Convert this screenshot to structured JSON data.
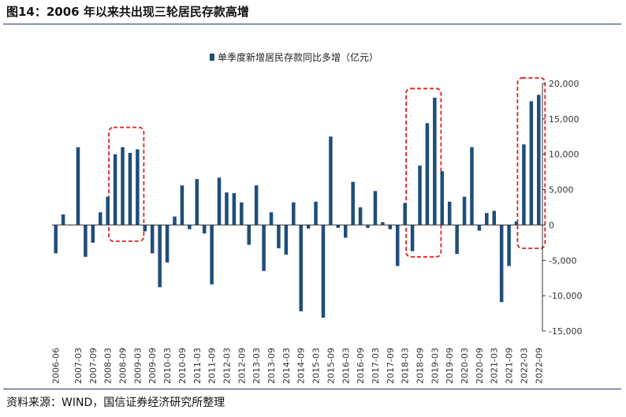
{
  "figure": {
    "title": "图14：2006 年以来共出现三轮居民存款高增",
    "source": "资料来源：WIND，国信证券经济研究所整理"
  },
  "chart_data": {
    "type": "bar",
    "legend": {
      "label": "单季度新增居民存款同比多增（亿元）",
      "placement": "top-center"
    },
    "color": "#1f4e79",
    "highlight_color": "#e02020",
    "ylim": [
      -15000,
      20000
    ],
    "yticks": [
      -15000,
      -10000,
      -5000,
      0,
      5000,
      10000,
      15000,
      20000
    ],
    "ytick_labels": [
      "-15,000",
      "-10,000",
      "-5,000",
      "0",
      "5,000",
      "10,000",
      "15,000",
      "20,000"
    ],
    "xtick_labels": [
      "2006-06",
      "2007-03",
      "2007-09",
      "2008-03",
      "2008-09",
      "2009-03",
      "2009-09",
      "2010-03",
      "2010-09",
      "2011-03",
      "2011-09",
      "2012-03",
      "2012-09",
      "2013-03",
      "2013-09",
      "2014-03",
      "2014-09",
      "2015-03",
      "2015-09",
      "2016-03",
      "2016-09",
      "2017-03",
      "2017-09",
      "2018-03",
      "2018-09",
      "2019-03",
      "2019-09",
      "2020-03",
      "2020-09",
      "2021-03",
      "2021-09",
      "2022-03",
      "2022-09"
    ],
    "categories": [
      "2006-06",
      "2006-09",
      "2006-12",
      "2007-03",
      "2007-06",
      "2007-09",
      "2007-12",
      "2008-03",
      "2008-06",
      "2008-09",
      "2008-12",
      "2009-03",
      "2009-06",
      "2009-09",
      "2009-12",
      "2010-03",
      "2010-06",
      "2010-09",
      "2010-12",
      "2011-03",
      "2011-06",
      "2011-09",
      "2011-12",
      "2012-03",
      "2012-06",
      "2012-09",
      "2012-12",
      "2013-03",
      "2013-06",
      "2013-09",
      "2013-12",
      "2014-03",
      "2014-06",
      "2014-09",
      "2014-12",
      "2015-03",
      "2015-06",
      "2015-09",
      "2015-12",
      "2016-03",
      "2016-06",
      "2016-09",
      "2016-12",
      "2017-03",
      "2017-06",
      "2017-09",
      "2017-12",
      "2018-03",
      "2018-06",
      "2018-09",
      "2018-12",
      "2019-03",
      "2019-06",
      "2019-09",
      "2019-12",
      "2020-03",
      "2020-06",
      "2020-09",
      "2020-12",
      "2021-03",
      "2021-06",
      "2021-09",
      "2021-12",
      "2022-03",
      "2022-06",
      "2022-09"
    ],
    "values": [
      -4000,
      1500,
      0,
      11000,
      -4500,
      -2500,
      1800,
      4000,
      10000,
      11000,
      10200,
      10700,
      -900,
      -4000,
      -8800,
      -5300,
      1200,
      5600,
      -600,
      6500,
      -1200,
      -8400,
      6700,
      4600,
      4500,
      3200,
      -2800,
      5600,
      -6500,
      1800,
      -3300,
      -4200,
      3200,
      -12200,
      -500,
      3300,
      -13100,
      12500,
      -400,
      -1800,
      6100,
      2500,
      -400,
      4800,
      400,
      -600,
      -5800,
      3100,
      -3700,
      8400,
      14400,
      18000,
      7600,
      3300,
      -4100,
      4000,
      11000,
      -800,
      1700,
      2000,
      -10900,
      -5800,
      500,
      11400,
      17500,
      18400
    ],
    "highlight_groups": [
      {
        "from": "2008-06",
        "to": "2009-03",
        "ymin": -2300,
        "ymax": 13800
      },
      {
        "from": "2018-06",
        "to": "2019-03",
        "ymin": -4500,
        "ymax": 19300
      },
      {
        "from": "2022-03",
        "to": "2022-09",
        "ymin": -3300,
        "ymax": 20800
      }
    ]
  }
}
